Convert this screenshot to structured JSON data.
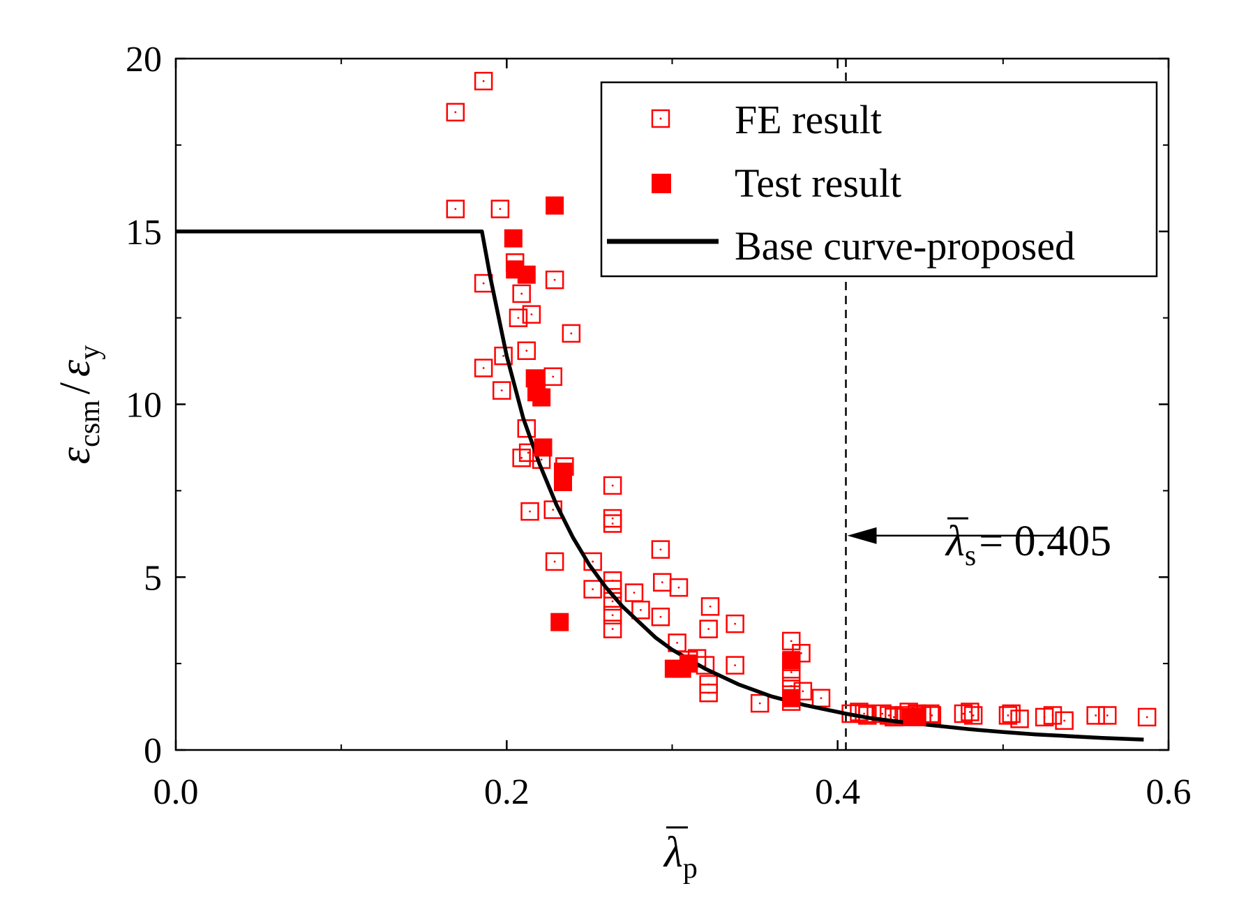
{
  "chart_data": {
    "type": "scatter",
    "x_axis": {
      "label_symbol": "λ",
      "label_subscript": "p",
      "range": [
        0,
        0.6
      ],
      "major_ticks": [
        0.0,
        0.2,
        0.4,
        0.6
      ],
      "tick_labels": [
        "0.0",
        "0.2",
        "0.4",
        "0.6"
      ],
      "minor_ticks": [
        0.1,
        0.3,
        0.5
      ]
    },
    "y_axis": {
      "label_num_symbol": "ε",
      "label_num_subscript": "csm",
      "label_divider": "/",
      "label_den_symbol": "ε",
      "label_den_subscript": "y",
      "range": [
        0,
        20
      ],
      "major_ticks": [
        0,
        5,
        10,
        15,
        20
      ],
      "tick_labels": [
        "0",
        "5",
        "10",
        "15",
        "20"
      ],
      "minor_ticks": [
        2.5,
        7.5,
        12.5,
        17.5
      ]
    },
    "legend": {
      "position": "top-right",
      "entries": [
        "FE result",
        "Test result",
        "Base curve-proposed"
      ]
    },
    "series": [
      {
        "name": "FE result",
        "marker": "open-square",
        "color": "#ff0000",
        "points": [
          [
            0.169,
            18.45
          ],
          [
            0.186,
            19.35
          ],
          [
            0.169,
            15.65
          ],
          [
            0.196,
            15.65
          ],
          [
            0.186,
            13.5
          ],
          [
            0.186,
            11.05
          ],
          [
            0.198,
            11.4
          ],
          [
            0.197,
            10.4
          ],
          [
            0.205,
            14.1
          ],
          [
            0.207,
            12.5
          ],
          [
            0.209,
            13.2
          ],
          [
            0.212,
            11.55
          ],
          [
            0.215,
            12.6
          ],
          [
            0.229,
            13.6
          ],
          [
            0.239,
            12.05
          ],
          [
            0.212,
            9.3
          ],
          [
            0.209,
            8.45
          ],
          [
            0.213,
            8.6
          ],
          [
            0.221,
            8.4
          ],
          [
            0.228,
            10.8
          ],
          [
            0.235,
            8.2
          ],
          [
            0.214,
            6.9
          ],
          [
            0.228,
            6.95
          ],
          [
            0.229,
            5.45
          ],
          [
            0.264,
            7.65
          ],
          [
            0.264,
            6.7
          ],
          [
            0.264,
            6.55
          ],
          [
            0.252,
            5.45
          ],
          [
            0.252,
            4.65
          ],
          [
            0.264,
            4.9
          ],
          [
            0.264,
            4.65
          ],
          [
            0.264,
            4.3
          ],
          [
            0.264,
            3.9
          ],
          [
            0.264,
            3.5
          ],
          [
            0.277,
            4.55
          ],
          [
            0.281,
            4.05
          ],
          [
            0.293,
            5.8
          ],
          [
            0.294,
            4.85
          ],
          [
            0.293,
            3.85
          ],
          [
            0.304,
            4.7
          ],
          [
            0.303,
            3.1
          ],
          [
            0.31,
            2.6
          ],
          [
            0.315,
            2.65
          ],
          [
            0.32,
            2.45
          ],
          [
            0.322,
            1.9
          ],
          [
            0.322,
            1.65
          ],
          [
            0.322,
            3.5
          ],
          [
            0.323,
            4.15
          ],
          [
            0.338,
            3.65
          ],
          [
            0.338,
            2.45
          ],
          [
            0.353,
            1.35
          ],
          [
            0.372,
            3.15
          ],
          [
            0.372,
            2.55
          ],
          [
            0.372,
            2.25
          ],
          [
            0.372,
            1.85
          ],
          [
            0.372,
            1.6
          ],
          [
            0.372,
            1.4
          ],
          [
            0.378,
            2.8
          ],
          [
            0.379,
            1.7
          ],
          [
            0.39,
            1.5
          ],
          [
            0.408,
            1.05
          ],
          [
            0.413,
            1.1
          ],
          [
            0.416,
            1.05
          ],
          [
            0.418,
            1.0
          ],
          [
            0.427,
            1.05
          ],
          [
            0.431,
            1.0
          ],
          [
            0.434,
            0.95
          ],
          [
            0.44,
            1.0
          ],
          [
            0.443,
            1.1
          ],
          [
            0.448,
            1.05
          ],
          [
            0.451,
            1.0
          ],
          [
            0.456,
            1.05
          ],
          [
            0.457,
            1.0
          ],
          [
            0.476,
            1.05
          ],
          [
            0.48,
            1.1
          ],
          [
            0.482,
            1.0
          ],
          [
            0.503,
            1.0
          ],
          [
            0.505,
            1.05
          ],
          [
            0.51,
            0.9
          ],
          [
            0.525,
            0.95
          ],
          [
            0.53,
            1.0
          ],
          [
            0.537,
            0.85
          ],
          [
            0.556,
            1.0
          ],
          [
            0.563,
            1.0
          ],
          [
            0.587,
            0.95
          ]
        ]
      },
      {
        "name": "Test result",
        "marker": "filled-square",
        "color": "#ff0000",
        "points": [
          [
            0.229,
            15.75
          ],
          [
            0.204,
            14.8
          ],
          [
            0.205,
            13.9
          ],
          [
            0.212,
            13.75
          ],
          [
            0.217,
            10.75
          ],
          [
            0.218,
            10.35
          ],
          [
            0.221,
            10.2
          ],
          [
            0.222,
            8.75
          ],
          [
            0.234,
            8.05
          ],
          [
            0.234,
            7.75
          ],
          [
            0.232,
            3.7
          ],
          [
            0.301,
            2.35
          ],
          [
            0.306,
            2.35
          ],
          [
            0.31,
            2.5
          ],
          [
            0.372,
            2.6
          ],
          [
            0.372,
            1.5
          ],
          [
            0.445,
            0.95
          ],
          [
            0.448,
            0.95
          ]
        ]
      },
      {
        "name": "Base curve-proposed",
        "marker": "line",
        "color": "#000000",
        "plateau": {
          "x_end": 0.185,
          "y": 15.0
        },
        "curve_points": [
          [
            0.0,
            15.0
          ],
          [
            0.185,
            15.0
          ],
          [
            0.19,
            13.7
          ],
          [
            0.2,
            11.4
          ],
          [
            0.21,
            9.6
          ],
          [
            0.22,
            8.25
          ],
          [
            0.23,
            7.1
          ],
          [
            0.24,
            6.15
          ],
          [
            0.25,
            5.35
          ],
          [
            0.26,
            4.7
          ],
          [
            0.27,
            4.15
          ],
          [
            0.28,
            3.7
          ],
          [
            0.29,
            3.25
          ],
          [
            0.3,
            2.9
          ],
          [
            0.32,
            2.35
          ],
          [
            0.34,
            1.9
          ],
          [
            0.36,
            1.55
          ],
          [
            0.38,
            1.3
          ],
          [
            0.4,
            1.1
          ],
          [
            0.405,
            1.05
          ],
          [
            0.42,
            0.92
          ],
          [
            0.44,
            0.8
          ],
          [
            0.46,
            0.7
          ],
          [
            0.48,
            0.6
          ],
          [
            0.5,
            0.52
          ],
          [
            0.52,
            0.45
          ],
          [
            0.54,
            0.4
          ],
          [
            0.56,
            0.35
          ],
          [
            0.585,
            0.3
          ]
        ]
      }
    ],
    "reference_line": {
      "x": 0.405,
      "style": "dashed",
      "annotation_symbol": "λ",
      "annotation_subscript": "s",
      "annotation_value": "= 0.405",
      "annotation_y": 6.2,
      "annotation_x_end": 0.535
    }
  }
}
